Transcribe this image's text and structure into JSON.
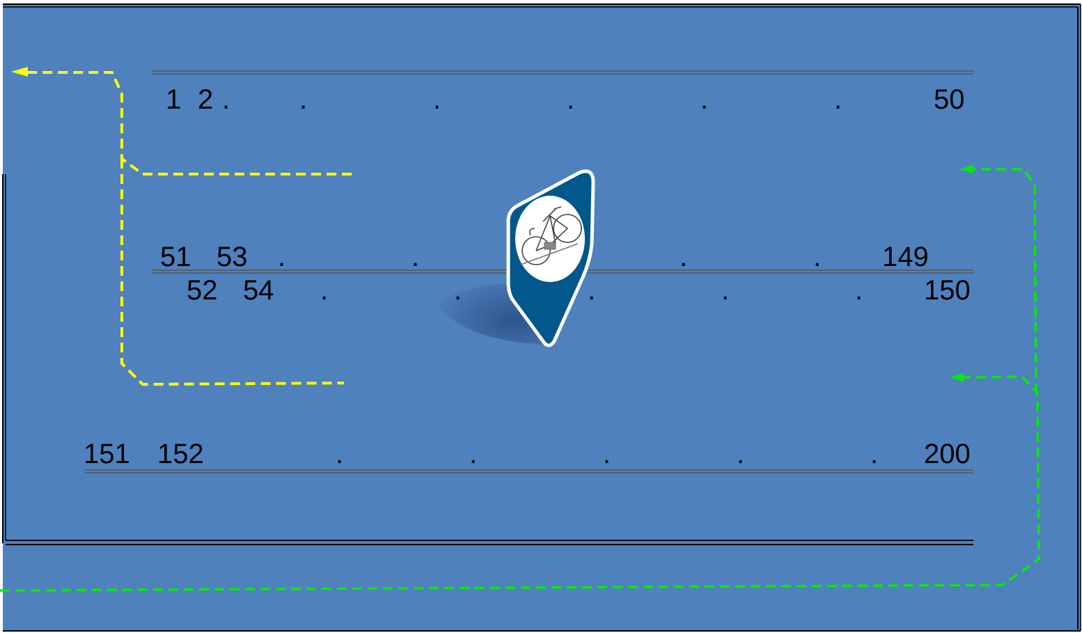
{
  "colors": {
    "background": "#4f81bd",
    "exit_path": "#ffff00",
    "entry_path": "#00ee00",
    "marker_fill": "#02578c",
    "rack_line": "#555555"
  },
  "row1": {
    "first": "1",
    "second": "2",
    "last": "50"
  },
  "row2": {
    "first_top": "51",
    "second_top": "53",
    "last_top": "149",
    "first_bottom": "52",
    "second_bottom": "54",
    "last_bottom": "150"
  },
  "row3": {
    "first": "151",
    "second": "152",
    "last": "200"
  },
  "ellipsis": ".",
  "icons": {
    "marker": "bicycle-parking-marker-icon"
  }
}
